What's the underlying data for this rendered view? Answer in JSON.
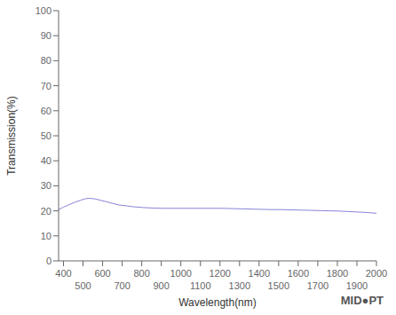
{
  "chart_data": {
    "type": "line",
    "xlabel": "Wavelength(nm)",
    "ylabel": "Transmission(%)",
    "annotations": [
      "MID●PT"
    ],
    "x": [
      375,
      400,
      430,
      460,
      490,
      510,
      530,
      560,
      590,
      620,
      650,
      680,
      720,
      760,
      810,
      860,
      910,
      960,
      1010,
      1060,
      1110,
      1160,
      1210,
      1260,
      1310,
      1360,
      1410,
      1460,
      1510,
      1560,
      1610,
      1660,
      1710,
      1760,
      1810,
      1860,
      1910,
      1960,
      2000
    ],
    "values": [
      20.5,
      21.5,
      22.5,
      23.5,
      24.3,
      24.8,
      25.0,
      24.8,
      24.2,
      23.6,
      23.0,
      22.4,
      22.0,
      21.6,
      21.3,
      21.1,
      21.0,
      21.0,
      21.0,
      21.0,
      21.0,
      21.0,
      21.0,
      20.9,
      20.8,
      20.7,
      20.6,
      20.5,
      20.5,
      20.4,
      20.3,
      20.2,
      20.1,
      20.0,
      19.9,
      19.7,
      19.5,
      19.3,
      19.0
    ],
    "xlim": [
      375,
      2000
    ],
    "ylim": [
      0,
      100
    ],
    "xticks": [
      400,
      500,
      600,
      700,
      800,
      900,
      1000,
      1100,
      1200,
      1300,
      1400,
      1500,
      1600,
      1700,
      1800,
      1900,
      2000
    ],
    "yticks": [
      0,
      10,
      20,
      30,
      40,
      50,
      60,
      70,
      80,
      90,
      100
    ],
    "grid": false
  }
}
